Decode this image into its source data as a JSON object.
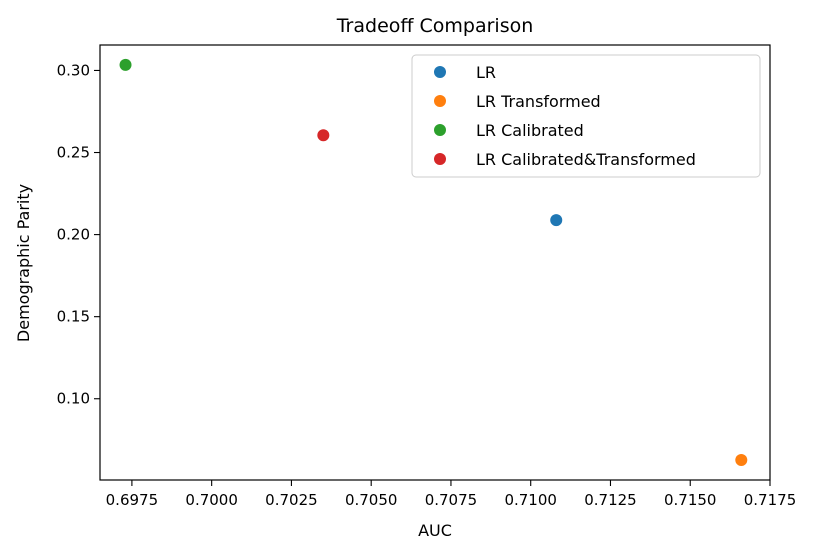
{
  "chart_data": {
    "type": "scatter",
    "title": "Tradeoff Comparison",
    "xlabel": "AUC",
    "ylabel": "Demographic Parity",
    "xlim": [
      0.6965,
      0.7175
    ],
    "ylim": [
      0.0505,
      0.3155
    ],
    "xticks": [
      0.6975,
      0.7,
      0.7025,
      0.705,
      0.7075,
      0.71,
      0.7125,
      0.715,
      0.7175
    ],
    "xtick_labels": [
      "0.6975",
      "0.7000",
      "0.7025",
      "0.7050",
      "0.7075",
      "0.7100",
      "0.7125",
      "0.7150",
      "0.7175"
    ],
    "yticks": [
      0.1,
      0.15,
      0.2,
      0.25,
      0.3
    ],
    "ytick_labels": [
      "0.10",
      "0.15",
      "0.20",
      "0.25",
      "0.30"
    ],
    "grid": false,
    "legend_position": "top-right",
    "series": [
      {
        "name": "LR",
        "color": "#1f77b4",
        "points": [
          {
            "x": 0.7108,
            "y": 0.2088
          }
        ]
      },
      {
        "name": "LR Transformed",
        "color": "#ff7f0e",
        "points": [
          {
            "x": 0.7166,
            "y": 0.0627
          }
        ]
      },
      {
        "name": "LR Calibrated",
        "color": "#2ca02c",
        "points": [
          {
            "x": 0.6973,
            "y": 0.3034
          }
        ]
      },
      {
        "name": "LR Calibrated&Transformed",
        "color": "#d62728",
        "points": [
          {
            "x": 0.7035,
            "y": 0.2605
          }
        ]
      }
    ]
  }
}
